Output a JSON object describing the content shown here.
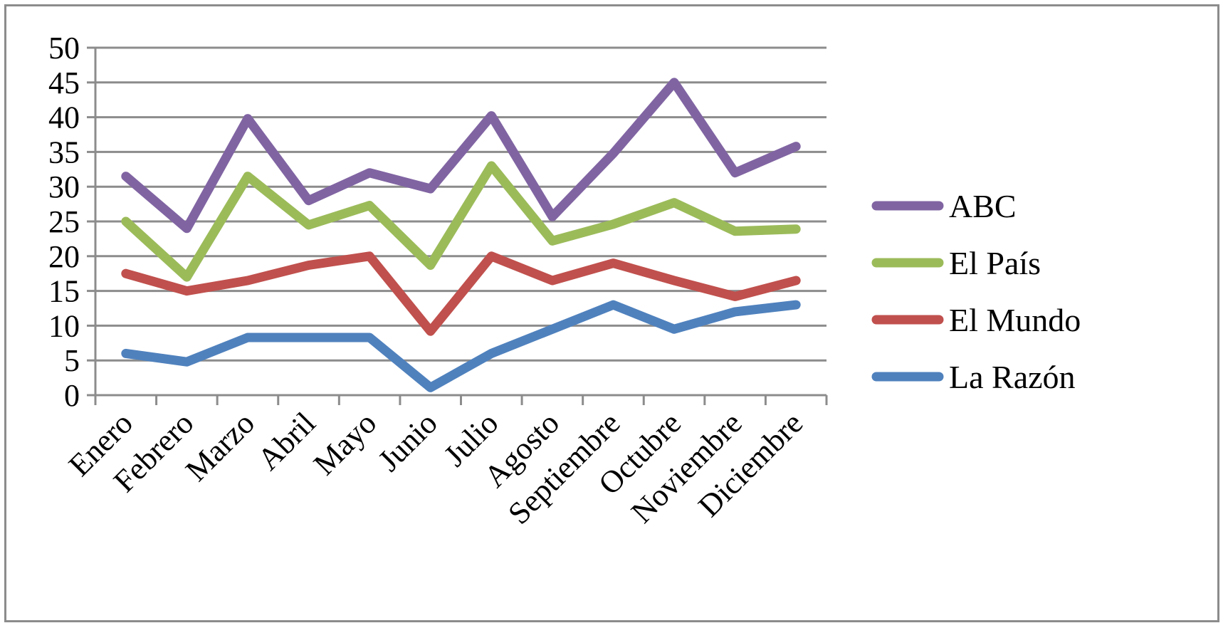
{
  "chart_data": {
    "type": "line",
    "title": "",
    "xlabel": "",
    "ylabel": "",
    "ylim": [
      0,
      50
    ],
    "yticks": [
      "0",
      "5",
      "10",
      "15",
      "20",
      "25",
      "30",
      "35",
      "40",
      "45",
      "50"
    ],
    "grid": true,
    "legend_position": "right",
    "categories": [
      "Enero",
      "Febrero",
      "Marzo",
      "Abril",
      "Mayo",
      "Junio",
      "Julio",
      "Agosto",
      "Septiembre",
      "Octubre",
      "Noviembre",
      "Diciembre"
    ],
    "series": [
      {
        "name": "ABC",
        "color": "#8064a2",
        "values": [
          31.5,
          24,
          39.8,
          28,
          32,
          29.7,
          40.2,
          25.7,
          34.8,
          45,
          32,
          35.8
        ]
      },
      {
        "name": "El País",
        "color": "#9bbb59",
        "values": [
          25,
          17,
          31.5,
          24.5,
          27.3,
          18.7,
          33,
          22.2,
          24.6,
          27.7,
          23.6,
          23.9
        ]
      },
      {
        "name": "El Mundo",
        "color": "#c0504d",
        "values": [
          17.5,
          15,
          16.5,
          18.7,
          20,
          9.2,
          20,
          16.5,
          19,
          16.5,
          14.2,
          16.5
        ]
      },
      {
        "name": "La Razón",
        "color": "#4f81bd",
        "values": [
          6,
          4.8,
          8.3,
          8.3,
          8.3,
          1.1,
          6,
          9.5,
          13,
          9.5,
          12,
          13
        ]
      }
    ]
  }
}
